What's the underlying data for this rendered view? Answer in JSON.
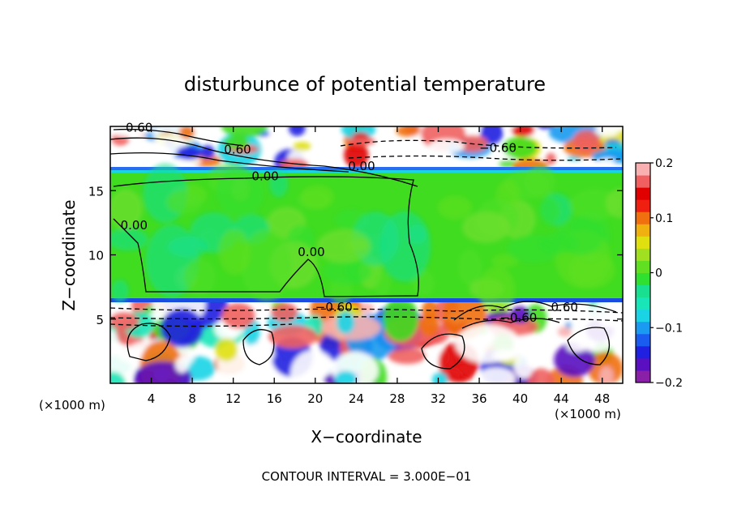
{
  "chart_data": {
    "type": "heatmap",
    "title": "disturbunce of potential temperature",
    "xlabel": "X−coordinate",
    "ylabel": "Z−coordinate",
    "x_unit": "(×1000 m)",
    "z_unit": "(×1000 m)",
    "xlim": [
      0,
      50
    ],
    "ylim": [
      0,
      20
    ],
    "x_ticks": [
      4,
      8,
      12,
      16,
      20,
      24,
      28,
      32,
      36,
      40,
      44,
      48
    ],
    "y_ticks": [
      5,
      10,
      15
    ],
    "colorbar": {
      "min": -0.2,
      "max": 0.2,
      "tick_values": [
        0.2,
        0.1,
        0,
        -0.1,
        -0.2
      ],
      "tick_labels": [
        "0.2",
        "0.1",
        "0",
        "−0.1",
        "−0.2"
      ],
      "colors": [
        "#8a1fa8",
        "#5a10c0",
        "#2020e0",
        "#1a5cf0",
        "#1a9af0",
        "#1ad4e6",
        "#18e6b8",
        "#18e090",
        "#30e030",
        "#60e020",
        "#a0e020",
        "#e0e010",
        "#f0b010",
        "#f07010",
        "#f02010",
        "#e00000",
        "#f06060",
        "#f8b0b0"
      ]
    },
    "contour_labels": [
      {
        "text": "0.60",
        "x": 1.5,
        "z": 19.6
      },
      {
        "text": "0.60",
        "x": 11.1,
        "z": 17.9
      },
      {
        "text": "0.00",
        "x": 23.2,
        "z": 16.6
      },
      {
        "text": "−0.60",
        "x": 36.0,
        "z": 18.0
      },
      {
        "text": "0.00",
        "x": 13.8,
        "z": 15.8
      },
      {
        "text": "0.00",
        "x": 1.0,
        "z": 12.0
      },
      {
        "text": "0.00",
        "x": 18.3,
        "z": 9.9
      },
      {
        "text": "−0.60",
        "x": 20.0,
        "z": 5.6
      },
      {
        "text": "0.60",
        "x": 43.0,
        "z": 5.6
      },
      {
        "text": "−0.60",
        "x": 38.0,
        "z": 4.8
      }
    ],
    "footer": "CONTOUR INTERVAL = 3.000E−01"
  }
}
